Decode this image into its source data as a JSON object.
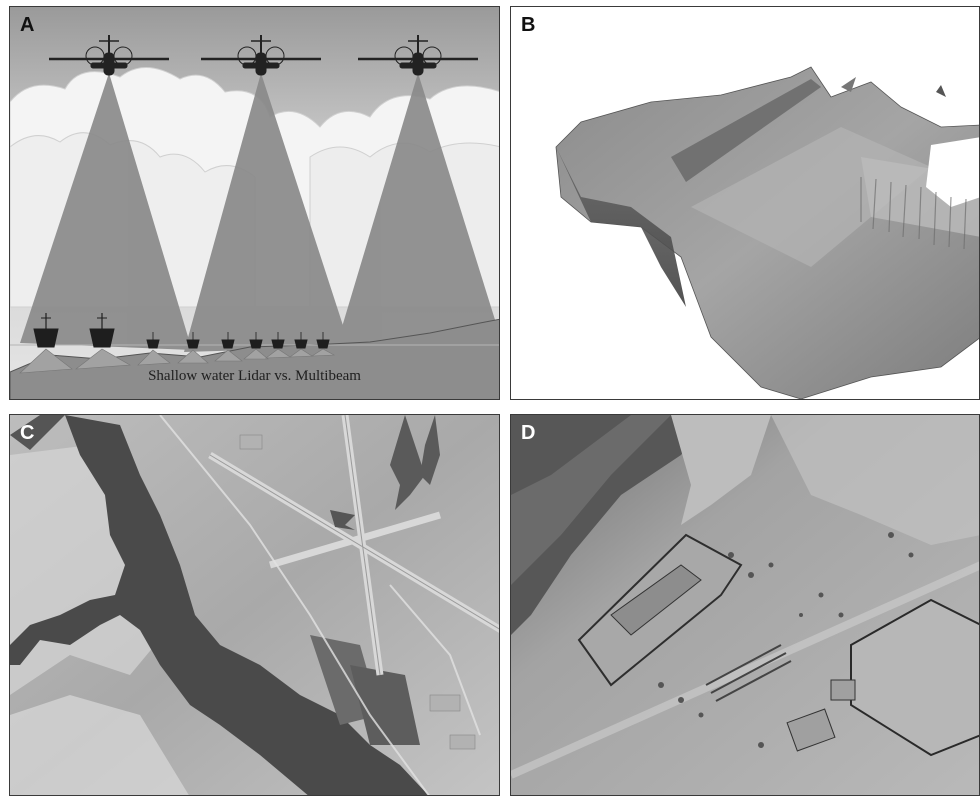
{
  "panels": {
    "a": {
      "label": "A",
      "caption": "Shallow water Lidar vs. Multibeam"
    },
    "b": {
      "label": "B"
    },
    "c": {
      "label": "C"
    },
    "d": {
      "label": "D"
    }
  }
}
